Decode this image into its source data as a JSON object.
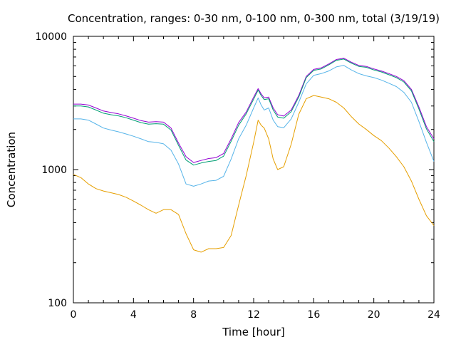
{
  "chart_data": {
    "type": "line",
    "title": "Concentration, ranges: 0-30 nm, 0-100 nm, 0-300 nm, total (3/19/19)",
    "xlabel": "Time [hour]",
    "ylabel": "Concentration",
    "xlim": [
      0,
      24
    ],
    "ylim": [
      100,
      10000
    ],
    "yscale": "log",
    "grid": false,
    "legend": "none",
    "xticks": [
      0,
      4,
      8,
      12,
      16,
      20,
      24
    ],
    "xtick_labels": [
      "0",
      "4",
      "8",
      "12",
      "16",
      "20",
      "24"
    ],
    "yticks": [
      100,
      1000,
      10000
    ],
    "ytick_labels": [
      "100",
      "1000",
      "10000"
    ],
    "x": [
      0,
      0.5,
      1,
      1.5,
      2,
      2.5,
      3,
      3.5,
      4,
      4.5,
      5,
      5.5,
      6,
      6.5,
      7,
      7.5,
      8,
      8.5,
      9,
      9.5,
      10,
      10.5,
      11,
      11.5,
      12,
      12.3,
      12.5,
      12.7,
      13,
      13.3,
      13.6,
      14,
      14.5,
      15,
      15.5,
      16,
      16.5,
      17,
      17.5,
      18,
      18.5,
      19,
      19.5,
      20,
      20.5,
      21,
      21.5,
      22,
      22.5,
      23,
      23.5,
      24
    ],
    "series": [
      {
        "color": "#9400d3",
        "values": [
          3100,
          3100,
          3050,
          2900,
          2750,
          2680,
          2620,
          2530,
          2430,
          2330,
          2270,
          2290,
          2270,
          2050,
          1580,
          1250,
          1130,
          1170,
          1210,
          1230,
          1320,
          1700,
          2250,
          2700,
          3500,
          4050,
          3700,
          3450,
          3500,
          2900,
          2580,
          2520,
          2800,
          3600,
          5000,
          5650,
          5800,
          6200,
          6700,
          6850,
          6400,
          6050,
          5950,
          5700,
          5500,
          5250,
          5000,
          4650,
          4000,
          2950,
          2100,
          1700
        ]
      },
      {
        "color": "#009e73",
        "values": [
          3000,
          3000,
          2950,
          2800,
          2650,
          2580,
          2530,
          2450,
          2350,
          2250,
          2190,
          2210,
          2190,
          1980,
          1520,
          1180,
          1080,
          1120,
          1150,
          1170,
          1260,
          1630,
          2150,
          2620,
          3380,
          3950,
          3600,
          3350,
          3400,
          2800,
          2480,
          2430,
          2720,
          3500,
          4900,
          5550,
          5700,
          6100,
          6600,
          6750,
          6300,
          5950,
          5850,
          5600,
          5400,
          5150,
          4900,
          4550,
          3900,
          2850,
          2020,
          1620
        ]
      },
      {
        "color": "#56b4e9",
        "values": [
          2400,
          2400,
          2350,
          2200,
          2050,
          1980,
          1920,
          1850,
          1780,
          1700,
          1620,
          1600,
          1560,
          1400,
          1100,
          780,
          750,
          780,
          820,
          830,
          890,
          1200,
          1700,
          2150,
          2900,
          3450,
          3050,
          2800,
          2900,
          2350,
          2100,
          2060,
          2400,
          3200,
          4400,
          5100,
          5250,
          5500,
          5900,
          6050,
          5600,
          5250,
          5050,
          4900,
          4700,
          4450,
          4200,
          3800,
          3200,
          2300,
          1600,
          1150
        ]
      },
      {
        "color": "#e69f00",
        "values": [
          920,
          870,
          780,
          720,
          690,
          670,
          650,
          620,
          580,
          540,
          500,
          470,
          500,
          500,
          460,
          330,
          250,
          240,
          255,
          255,
          260,
          320,
          540,
          900,
          1600,
          2350,
          2150,
          2050,
          1700,
          1200,
          1000,
          1050,
          1550,
          2600,
          3400,
          3600,
          3500,
          3400,
          3200,
          2900,
          2500,
          2200,
          2000,
          1800,
          1650,
          1450,
          1250,
          1050,
          820,
          600,
          450,
          380
        ]
      }
    ]
  }
}
